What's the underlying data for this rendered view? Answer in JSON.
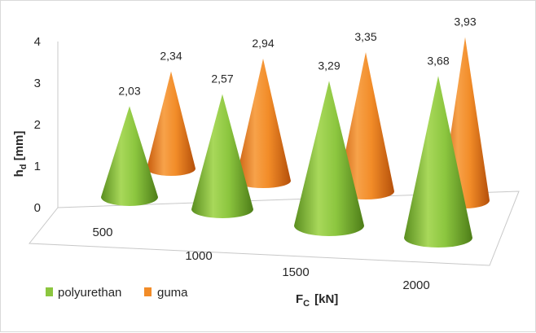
{
  "chart_data": {
    "type": "bar",
    "categories": [
      "500",
      "1000",
      "1500",
      "2000"
    ],
    "series": [
      {
        "name": "polyurethan",
        "values": [
          2.03,
          2.57,
          3.29,
          3.68
        ],
        "labels": [
          "2,03",
          "2,57",
          "3,29",
          "3,68"
        ],
        "color": "#8cc63f"
      },
      {
        "name": "guma",
        "values": [
          2.34,
          2.94,
          3.35,
          3.93
        ],
        "labels": [
          "2,34",
          "2,94",
          "3,35",
          "3,93"
        ],
        "color": "#f28c28"
      }
    ],
    "y_ticks": [
      "0",
      "1",
      "2",
      "3",
      "4"
    ],
    "ylim": [
      0,
      4
    ],
    "ylabel": {
      "main": "h",
      "sub": "d",
      "unit": "[mm]"
    },
    "xlabel": {
      "main": "F",
      "sub": "C",
      "unit": "[kN]"
    },
    "legend_position": "bottom-left",
    "style": "3d cone"
  }
}
